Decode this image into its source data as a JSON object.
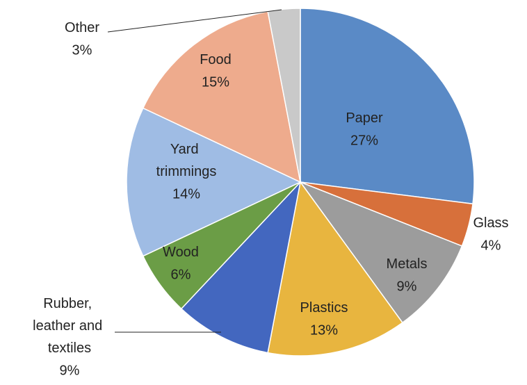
{
  "chart_data": {
    "type": "pie",
    "categories": [
      "Paper",
      "Glass",
      "Metals",
      "Plastics",
      "Rubber, leather and textiles",
      "Wood",
      "Yard trimmings",
      "Food",
      "Other"
    ],
    "values": [
      27,
      4,
      9,
      13,
      9,
      6,
      14,
      15,
      3
    ],
    "value_labels": [
      "27%",
      "4%",
      "9%",
      "13%",
      "9%",
      "6%",
      "14%",
      "15%",
      "3%"
    ],
    "colors": [
      "#5a8ac6",
      "#d7703b",
      "#9c9c9c",
      "#e8b53f",
      "#4367bf",
      "#6b9d46",
      "#9fbce4",
      "#eeab8d",
      "#c9c9c9"
    ]
  }
}
